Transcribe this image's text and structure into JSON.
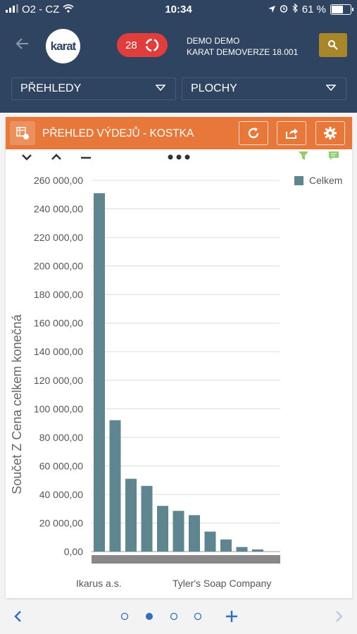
{
  "status_bar": {
    "carrier": "O2 - CZ",
    "time": "10:34",
    "battery": "61 %"
  },
  "header": {
    "logo_text": "karat",
    "notification_count": "28",
    "user_name": "DEMO DEMO",
    "user_company": "KARAT DEMOVERZE 18.001"
  },
  "filters": {
    "reports": "PŘEHLEDY",
    "area": "PLOCHY"
  },
  "panel": {
    "title": "PŘEHLED VÝDEJŮ - KOSTKA"
  },
  "colors": {
    "header_bg": "#2f4460",
    "panel_accent": "#e8783a",
    "bar": "#5f8591",
    "badge": "#e23d3d",
    "search_btn": "#a8872a"
  },
  "chart_data": {
    "type": "bar",
    "ylabel": "Součet Z Cena celkem konečná",
    "ylim": [
      0,
      260000
    ],
    "yticks": [
      "0,00",
      "20 000,00",
      "40 000,00",
      "60 000,00",
      "80 000,00",
      "100 000,00",
      "120 000,00",
      "140 000,00",
      "160 000,00",
      "180 000,00",
      "200 000,00",
      "220 000,00",
      "240 000,00",
      "260 000,00"
    ],
    "x_labels": [
      "Ikarus a.s.",
      "Tyler's Soap Company"
    ],
    "series": [
      {
        "name": "Celkem",
        "values": [
          251000,
          92000,
          51000,
          46000,
          32000,
          28500,
          25500,
          14000,
          8500,
          3200,
          1500
        ]
      }
    ],
    "legend": "top-right",
    "grid": true
  },
  "pager": {
    "pages": 4,
    "active_page": 2
  }
}
